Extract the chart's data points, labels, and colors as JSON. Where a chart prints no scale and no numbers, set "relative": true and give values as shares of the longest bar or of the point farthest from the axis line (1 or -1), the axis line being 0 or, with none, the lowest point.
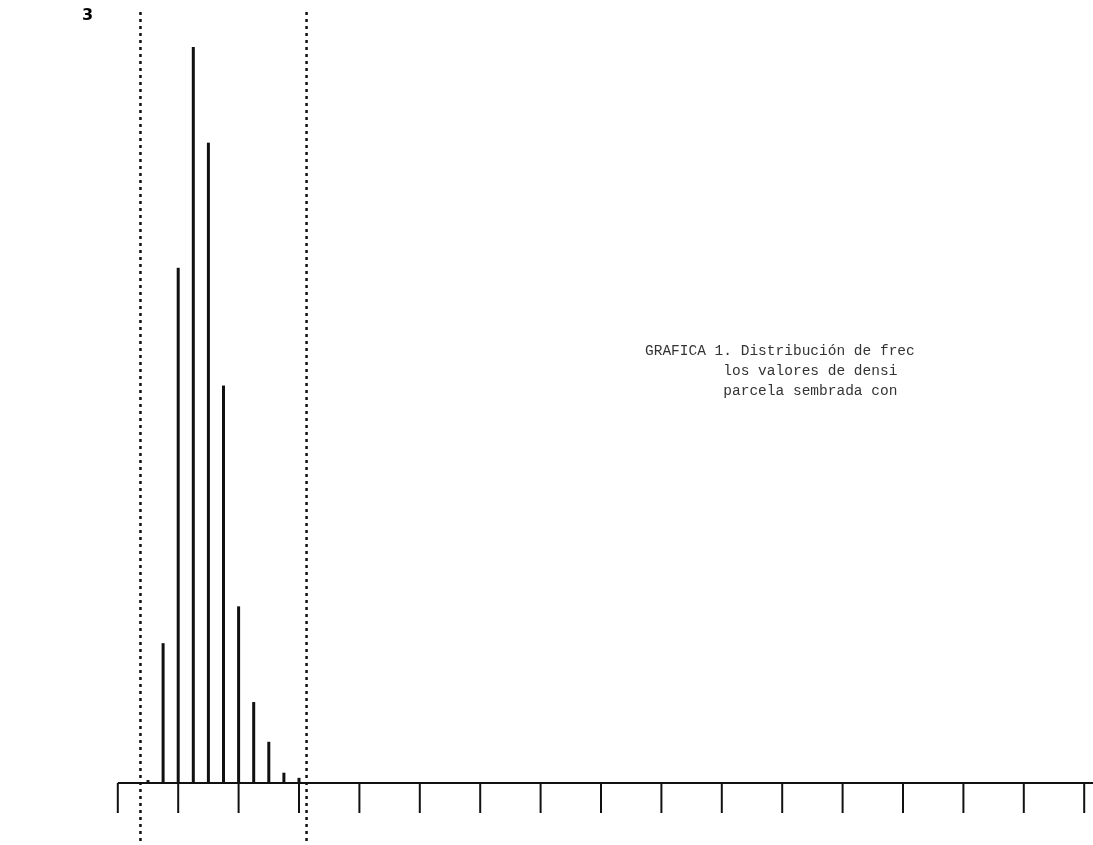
{
  "chart_data": {
    "type": "bar",
    "relative": true,
    "color": "#111111",
    "categories": [
      null,
      null,
      null,
      null,
      null,
      null,
      null,
      null,
      null,
      null,
      null
    ],
    "values": [
      0.004,
      0.19,
      0.7,
      1,
      0.87,
      0.54,
      0.24,
      0.11,
      0.056,
      0.014,
      0.007
    ],
    "annotations": [
      "3",
      "GRAFICA 1. Distribución de frec\n         los valores de densi\n         parcela sembrada con"
    ]
  }
}
